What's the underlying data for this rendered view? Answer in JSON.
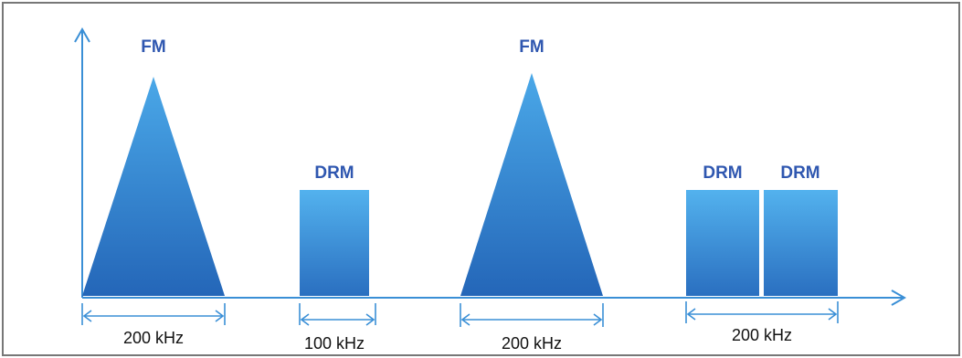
{
  "colors": {
    "accent": "#3a8fd6",
    "label": "#2f57b0",
    "border": "#777777"
  },
  "signals": {
    "fm_1": "FM",
    "drm_1": "DRM",
    "fm_2": "FM",
    "drm_2a": "DRM",
    "drm_2b": "DRM"
  },
  "bandwidths": {
    "bw_1": "200 kHz",
    "bw_2": "100 kHz",
    "bw_3": "200 kHz",
    "bw_4": "200 kHz"
  }
}
